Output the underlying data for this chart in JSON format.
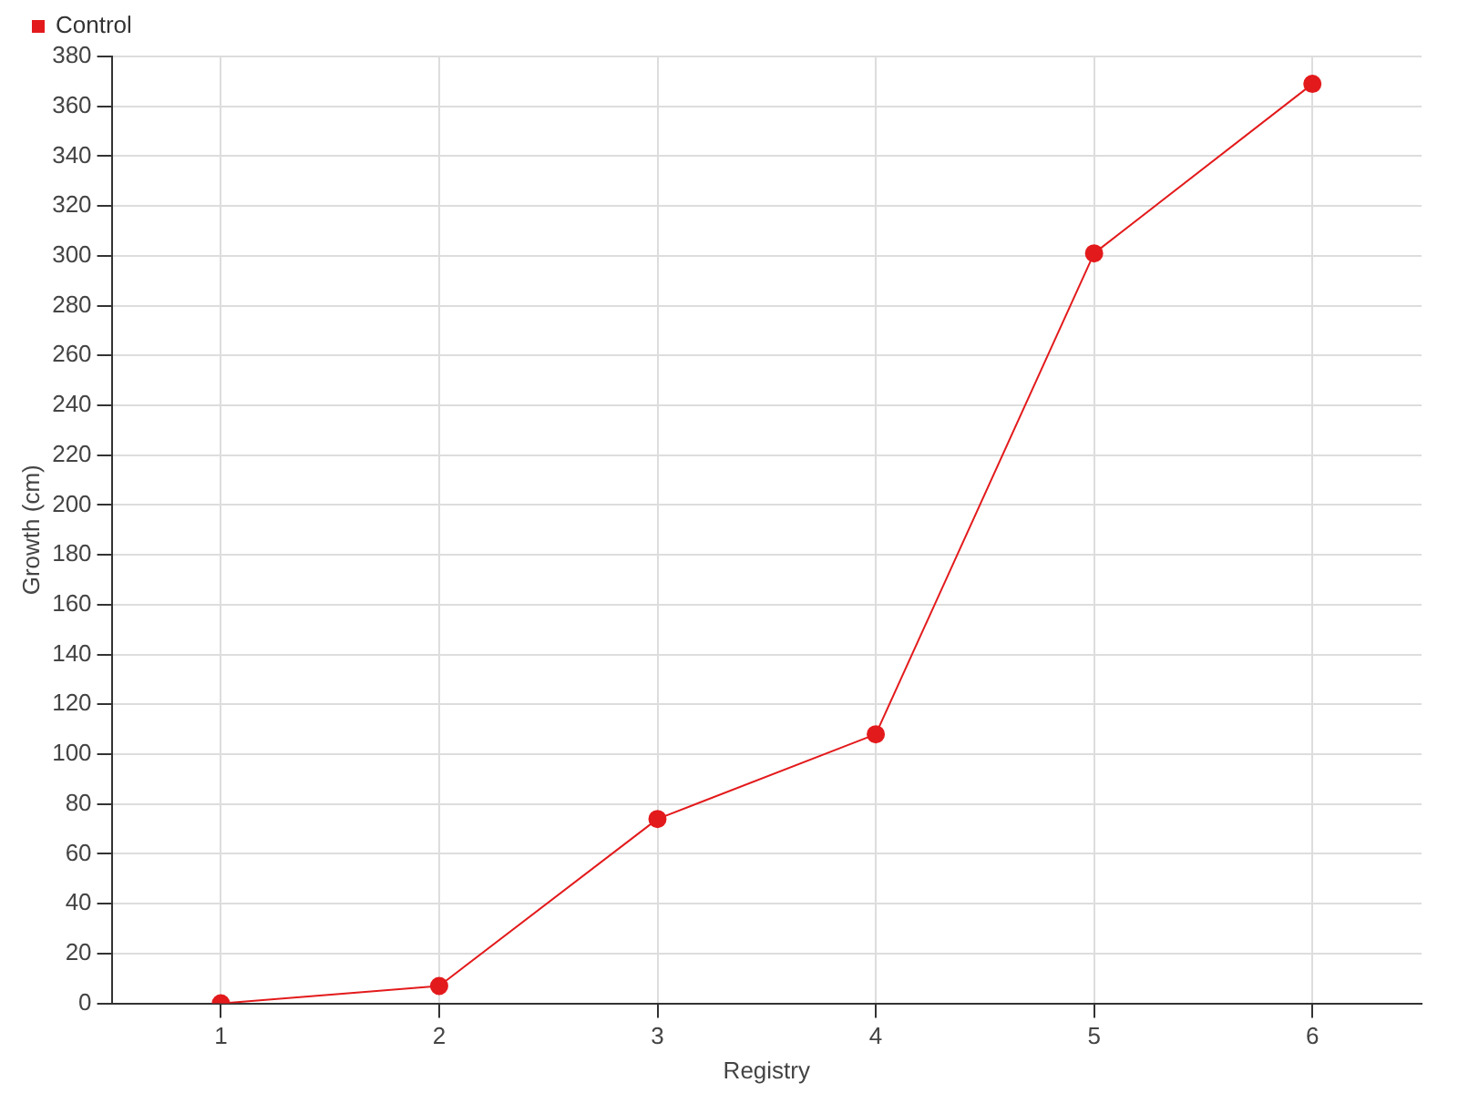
{
  "chart_data": {
    "type": "line",
    "xlabel": "Registry",
    "ylabel": "Growth (cm)",
    "categories": [
      "1",
      "2",
      "3",
      "4",
      "5",
      "6"
    ],
    "series": [
      {
        "name": "Control",
        "color": "#e31a1c",
        "values": [
          0,
          7,
          74,
          108,
          301,
          369
        ]
      }
    ],
    "ylim": [
      0,
      380
    ],
    "yticks": [
      0,
      20,
      40,
      60,
      80,
      100,
      120,
      140,
      160,
      180,
      200,
      220,
      240,
      260,
      280,
      300,
      320,
      340,
      360,
      380
    ],
    "grid": true,
    "legend": "top left",
    "marker": "circle",
    "line_style": "solid"
  }
}
